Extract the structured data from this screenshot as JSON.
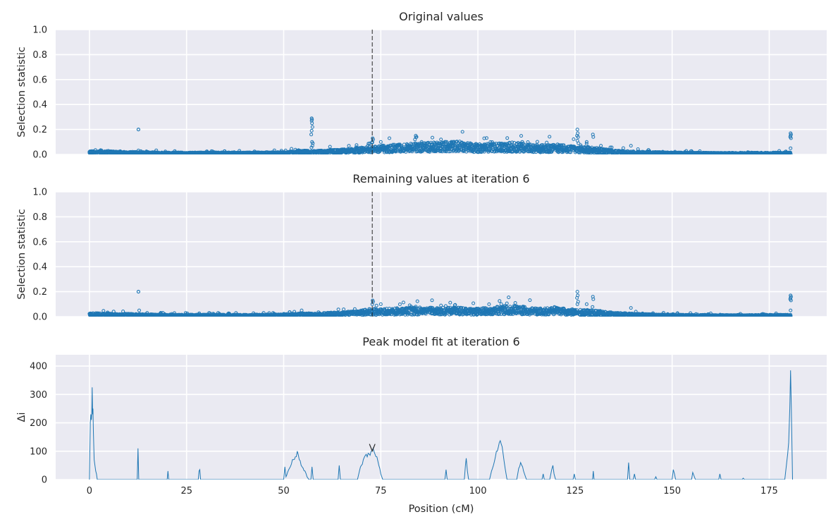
{
  "colors": {
    "background": "#eaeaf2",
    "grid": "#ffffff",
    "series": "#1f77b4",
    "vline": "#262626"
  },
  "chart_data": [
    {
      "type": "scatter",
      "title": "Original values",
      "xlabel": "",
      "ylabel": "Selection statistic",
      "xlim": [
        -8.7,
        189.8
      ],
      "ylim": [
        0,
        1
      ],
      "yticks": [
        "0.0",
        "0.2",
        "0.4",
        "0.6",
        "0.8",
        "1.0"
      ],
      "grid": true,
      "vline_x": 72.8,
      "baseline": [
        [
          0,
          0.018
        ],
        [
          20,
          0.01
        ],
        [
          40,
          0.01
        ],
        [
          50,
          0.012
        ],
        [
          55,
          0.02
        ],
        [
          58,
          0.018
        ],
        [
          62,
          0.022
        ],
        [
          68,
          0.028
        ],
        [
          72,
          0.04
        ],
        [
          76,
          0.045
        ],
        [
          80,
          0.05
        ],
        [
          85,
          0.055
        ],
        [
          90,
          0.06
        ],
        [
          95,
          0.065
        ],
        [
          100,
          0.05
        ],
        [
          105,
          0.055
        ],
        [
          110,
          0.06
        ],
        [
          115,
          0.045
        ],
        [
          120,
          0.05
        ],
        [
          125,
          0.04
        ],
        [
          130,
          0.035
        ],
        [
          135,
          0.02
        ],
        [
          140,
          0.015
        ],
        [
          150,
          0.01
        ],
        [
          165,
          0.008
        ],
        [
          180,
          0.01
        ]
      ],
      "outliers": [
        [
          12.6,
          0.2
        ],
        [
          12.6,
          0.2
        ],
        [
          57.2,
          0.29
        ],
        [
          57.3,
          0.28
        ],
        [
          57.2,
          0.27
        ],
        [
          57.3,
          0.25
        ],
        [
          57.4,
          0.22
        ],
        [
          57.2,
          0.19
        ],
        [
          57.1,
          0.16
        ],
        [
          57.3,
          0.1
        ],
        [
          57.5,
          0.09
        ],
        [
          57.4,
          0.07
        ],
        [
          72.9,
          0.13
        ],
        [
          73.0,
          0.12
        ],
        [
          72.8,
          0.1
        ],
        [
          75.0,
          0.1
        ],
        [
          84.0,
          0.15
        ],
        [
          84.2,
          0.14
        ],
        [
          83.8,
          0.12
        ],
        [
          85.5,
          0.1
        ],
        [
          90.5,
          0.12
        ],
        [
          93.5,
          0.1
        ],
        [
          125.6,
          0.2
        ],
        [
          125.7,
          0.17
        ],
        [
          125.5,
          0.15
        ],
        [
          125.8,
          0.14
        ],
        [
          125.6,
          0.11
        ],
        [
          125.9,
          0.09
        ],
        [
          129.6,
          0.16
        ],
        [
          129.7,
          0.14
        ],
        [
          128.0,
          0.1
        ],
        [
          139.4,
          0.07
        ],
        [
          180.5,
          0.17
        ],
        [
          180.6,
          0.16
        ],
        [
          180.5,
          0.15
        ],
        [
          180.4,
          0.14
        ],
        [
          180.6,
          0.13
        ],
        [
          180.5,
          0.05
        ]
      ]
    },
    {
      "type": "scatter",
      "title": "Remaining values at iteration 6",
      "xlabel": "",
      "ylabel": "Selection statistic",
      "xlim": [
        -8.7,
        189.8
      ],
      "ylim": [
        0,
        1
      ],
      "yticks": [
        "0.0",
        "0.2",
        "0.4",
        "0.6",
        "0.8",
        "1.0"
      ],
      "grid": true,
      "vline_x": 72.8,
      "baseline": [
        [
          0,
          0.018
        ],
        [
          20,
          0.01
        ],
        [
          40,
          0.01
        ],
        [
          50,
          0.012
        ],
        [
          55,
          0.018
        ],
        [
          58,
          0.016
        ],
        [
          62,
          0.02
        ],
        [
          68,
          0.026
        ],
        [
          72,
          0.038
        ],
        [
          76,
          0.04
        ],
        [
          80,
          0.042
        ],
        [
          85,
          0.045
        ],
        [
          90,
          0.045
        ],
        [
          95,
          0.045
        ],
        [
          100,
          0.04
        ],
        [
          105,
          0.05
        ],
        [
          110,
          0.055
        ],
        [
          115,
          0.04
        ],
        [
          120,
          0.045
        ],
        [
          125,
          0.035
        ],
        [
          130,
          0.03
        ],
        [
          135,
          0.02
        ],
        [
          140,
          0.015
        ],
        [
          150,
          0.01
        ],
        [
          165,
          0.008
        ],
        [
          180,
          0.01
        ]
      ],
      "outliers": [
        [
          12.6,
          0.2
        ],
        [
          12.6,
          0.2
        ],
        [
          12.8,
          0.05
        ],
        [
          72.9,
          0.13
        ],
        [
          73.0,
          0.12
        ],
        [
          72.8,
          0.1
        ],
        [
          75.0,
          0.1
        ],
        [
          84.0,
          0.08
        ],
        [
          90.5,
          0.09
        ],
        [
          106.0,
          0.1
        ],
        [
          125.6,
          0.2
        ],
        [
          125.7,
          0.17
        ],
        [
          125.5,
          0.15
        ],
        [
          125.8,
          0.12
        ],
        [
          125.6,
          0.1
        ],
        [
          129.6,
          0.16
        ],
        [
          129.7,
          0.14
        ],
        [
          128.0,
          0.1
        ],
        [
          139.4,
          0.07
        ],
        [
          180.5,
          0.17
        ],
        [
          180.6,
          0.16
        ],
        [
          180.5,
          0.15
        ],
        [
          180.4,
          0.14
        ],
        [
          180.6,
          0.13
        ],
        [
          180.5,
          0.05
        ]
      ]
    },
    {
      "type": "line",
      "title": "Peak model fit at iteration 6",
      "xlabel": "Position (cM)",
      "ylabel": "Δi",
      "xlim": [
        -8.7,
        189.8
      ],
      "ylim": [
        0,
        440
      ],
      "xticks": [
        "0",
        "25",
        "50",
        "75",
        "100",
        "125",
        "150",
        "175"
      ],
      "yticks": [
        "0",
        "100",
        "200",
        "300",
        "400"
      ],
      "grid": true,
      "marker": {
        "symbol": "v",
        "x": 72.8,
        "y": 113
      },
      "series": [
        {
          "values": [
            [
              0,
              0
            ],
            [
              0.2,
              200
            ],
            [
              0.35,
              230
            ],
            [
              0.5,
              210
            ],
            [
              0.6,
              240
            ],
            [
              0.7,
              325
            ],
            [
              0.8,
              230
            ],
            [
              0.9,
              250
            ],
            [
              1.0,
              170
            ],
            [
              1.2,
              70
            ],
            [
              1.4,
              50
            ],
            [
              1.6,
              30
            ],
            [
              1.8,
              20
            ],
            [
              2.0,
              0
            ],
            [
              12.3,
              0
            ],
            [
              12.5,
              110
            ],
            [
              12.7,
              0
            ],
            [
              20.0,
              0
            ],
            [
              20.2,
              30
            ],
            [
              20.4,
              0
            ],
            [
              28.0,
              0
            ],
            [
              28.2,
              30
            ],
            [
              28.4,
              35
            ],
            [
              28.6,
              0
            ],
            [
              50.0,
              0
            ],
            [
              50.3,
              45
            ],
            [
              50.6,
              10
            ],
            [
              51,
              25
            ],
            [
              51.5,
              40
            ],
            [
              52,
              55
            ],
            [
              52.5,
              70
            ],
            [
              53,
              80
            ],
            [
              53.5,
              100
            ],
            [
              54,
              70
            ],
            [
              54.5,
              50
            ],
            [
              55,
              40
            ],
            [
              55.5,
              30
            ],
            [
              56,
              10
            ],
            [
              56.5,
              0
            ],
            [
              57.0,
              0
            ],
            [
              57.3,
              45
            ],
            [
              57.6,
              0
            ],
            [
              64,
              0
            ],
            [
              64.3,
              50
            ],
            [
              64.6,
              0
            ],
            [
              69,
              0
            ],
            [
              69.5,
              30
            ],
            [
              70,
              50
            ],
            [
              70.5,
              70
            ],
            [
              71,
              85
            ],
            [
              71.5,
              80
            ],
            [
              72,
              90
            ],
            [
              72.5,
              100
            ],
            [
              73,
              110
            ],
            [
              73.5,
              90
            ],
            [
              74,
              80
            ],
            [
              74.5,
              50
            ],
            [
              75,
              20
            ],
            [
              75.5,
              0
            ],
            [
              91.5,
              0
            ],
            [
              91.8,
              35
            ],
            [
              92.1,
              0
            ],
            [
              96.5,
              0
            ],
            [
              96.8,
              50
            ],
            [
              97,
              75
            ],
            [
              97.3,
              30
            ],
            [
              97.6,
              0
            ],
            [
              103,
              0
            ],
            [
              103.5,
              30
            ],
            [
              104,
              50
            ],
            [
              104.5,
              80
            ],
            [
              105,
              100
            ],
            [
              105.5,
              130
            ],
            [
              106,
              125
            ],
            [
              106.5,
              90
            ],
            [
              107,
              40
            ],
            [
              107.5,
              0
            ],
            [
              110,
              0
            ],
            [
              110.5,
              40
            ],
            [
              111,
              60
            ],
            [
              111.5,
              45
            ],
            [
              112,
              20
            ],
            [
              112.5,
              0
            ],
            [
              116.5,
              0
            ],
            [
              116.8,
              20
            ],
            [
              117.1,
              0
            ],
            [
              118.5,
              0
            ],
            [
              119,
              35
            ],
            [
              119.3,
              50
            ],
            [
              119.6,
              20
            ],
            [
              120,
              0
            ],
            [
              124.5,
              0
            ],
            [
              124.8,
              20
            ],
            [
              125.1,
              0
            ],
            [
              129.5,
              0
            ],
            [
              129.7,
              30
            ],
            [
              129.9,
              0
            ],
            [
              138.5,
              0
            ],
            [
              138.8,
              60
            ],
            [
              139.1,
              0
            ],
            [
              140,
              0
            ],
            [
              140.3,
              20
            ],
            [
              140.6,
              0
            ],
            [
              145.5,
              0
            ],
            [
              145.8,
              10
            ],
            [
              146.1,
              0
            ],
            [
              150,
              0
            ],
            [
              150.3,
              35
            ],
            [
              150.6,
              20
            ],
            [
              150.9,
              0
            ],
            [
              155,
              0
            ],
            [
              155.3,
              25
            ],
            [
              155.6,
              15
            ],
            [
              156,
              0
            ],
            [
              162,
              0
            ],
            [
              162.3,
              20
            ],
            [
              162.6,
              0
            ],
            [
              168,
              0
            ],
            [
              168.3,
              5
            ],
            [
              168.6,
              0
            ],
            [
              179,
              0
            ],
            [
              179.5,
              60
            ],
            [
              180,
              130
            ],
            [
              180.3,
              250
            ],
            [
              180.5,
              385
            ],
            [
              180.7,
              250
            ],
            [
              181,
              0
            ]
          ]
        }
      ]
    }
  ]
}
